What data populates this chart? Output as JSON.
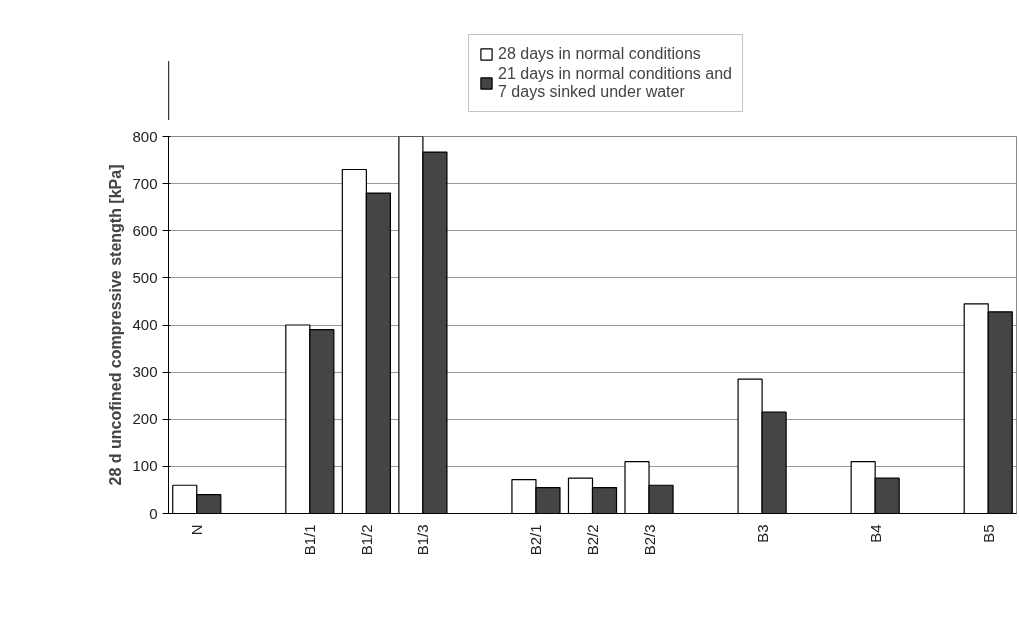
{
  "chart_data": {
    "type": "bar",
    "ylabel": "28 d uncofined compressive stength [kPa]",
    "categories": [
      "N",
      null,
      "B1/1",
      "B1/2",
      "B1/3",
      null,
      "B2/1",
      "B2/2",
      "B2/3",
      null,
      "B3",
      null,
      "B4",
      null,
      "B5"
    ],
    "series": [
      {
        "name": "28 days in normal conditions",
        "color": "#ffffff",
        "values": [
          60,
          null,
          400,
          730,
          800,
          null,
          72,
          75,
          110,
          null,
          285,
          null,
          110,
          null,
          445
        ]
      },
      {
        "name": "21 days in normal conditions and\n7 days sinked under water",
        "color": "#454545",
        "values": [
          40,
          null,
          390,
          680,
          767,
          null,
          55,
          55,
          60,
          null,
          215,
          null,
          75,
          null,
          428
        ]
      }
    ],
    "ylim": [
      0,
      800
    ],
    "yticks": [
      0,
      100,
      200,
      300,
      400,
      500,
      600,
      700,
      800
    ],
    "grid": "y",
    "legend": "top right"
  }
}
